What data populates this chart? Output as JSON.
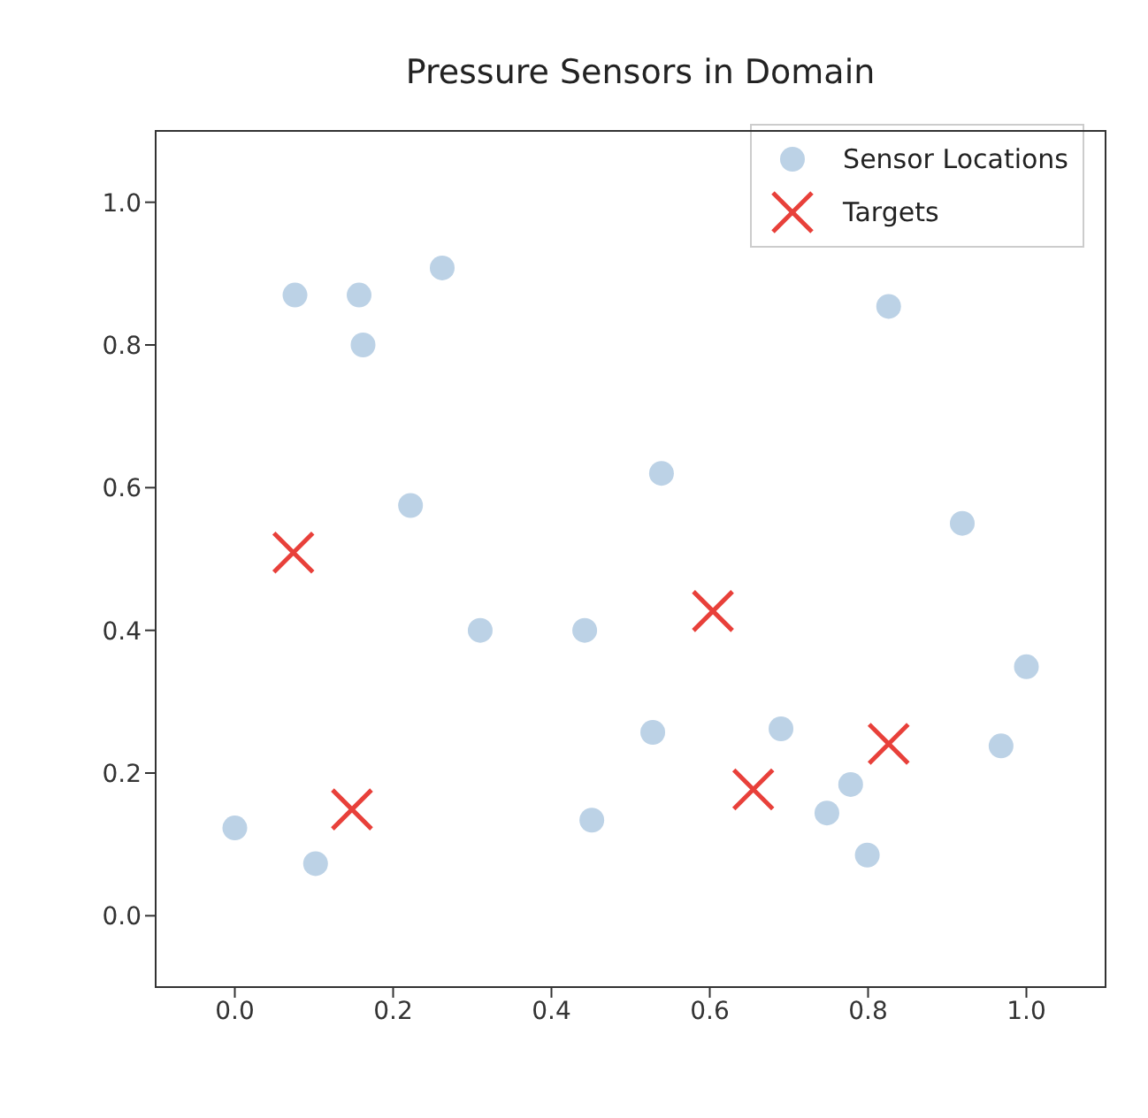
{
  "chart_data": {
    "type": "scatter",
    "title": "Pressure Sensors in Domain",
    "xlim": [
      -0.1,
      1.1
    ],
    "ylim": [
      -0.1,
      1.1
    ],
    "xticks": [
      {
        "value": 0,
        "label": "0.0"
      },
      0.2,
      0.4,
      0.6,
      0.8,
      {
        "value": 1,
        "label": "1.0"
      }
    ],
    "yticks": [
      {
        "value": 0,
        "label": "0.0"
      },
      0.2,
      0.4,
      0.6,
      0.8,
      {
        "value": 1,
        "label": "1.0"
      }
    ],
    "grid": false,
    "legend": "top right",
    "series": [
      {
        "name": "Sensor Locations",
        "color": "#bcd2e6",
        "marker": "circle",
        "x": [
          0.0,
          0.076,
          0.157,
          0.162,
          0.262,
          0.222,
          0.31,
          0.102,
          0.442,
          0.451,
          0.528,
          0.539,
          0.69,
          0.748,
          0.778,
          0.799,
          0.826,
          0.919,
          0.968,
          1.0
        ],
        "values": [
          0.123,
          0.87,
          0.87,
          0.8,
          0.908,
          0.575,
          0.4,
          0.073,
          0.4,
          0.134,
          0.257,
          0.62,
          0.262,
          0.144,
          0.184,
          0.085,
          0.854,
          0.55,
          0.238,
          0.349
        ]
      },
      {
        "name": "Targets",
        "color": "#e8403a",
        "marker": "cross",
        "x": [
          0.074,
          0.148,
          0.604,
          0.655,
          0.826
        ],
        "values": [
          0.509,
          0.149,
          0.427,
          0.177,
          0.241
        ]
      }
    ]
  }
}
